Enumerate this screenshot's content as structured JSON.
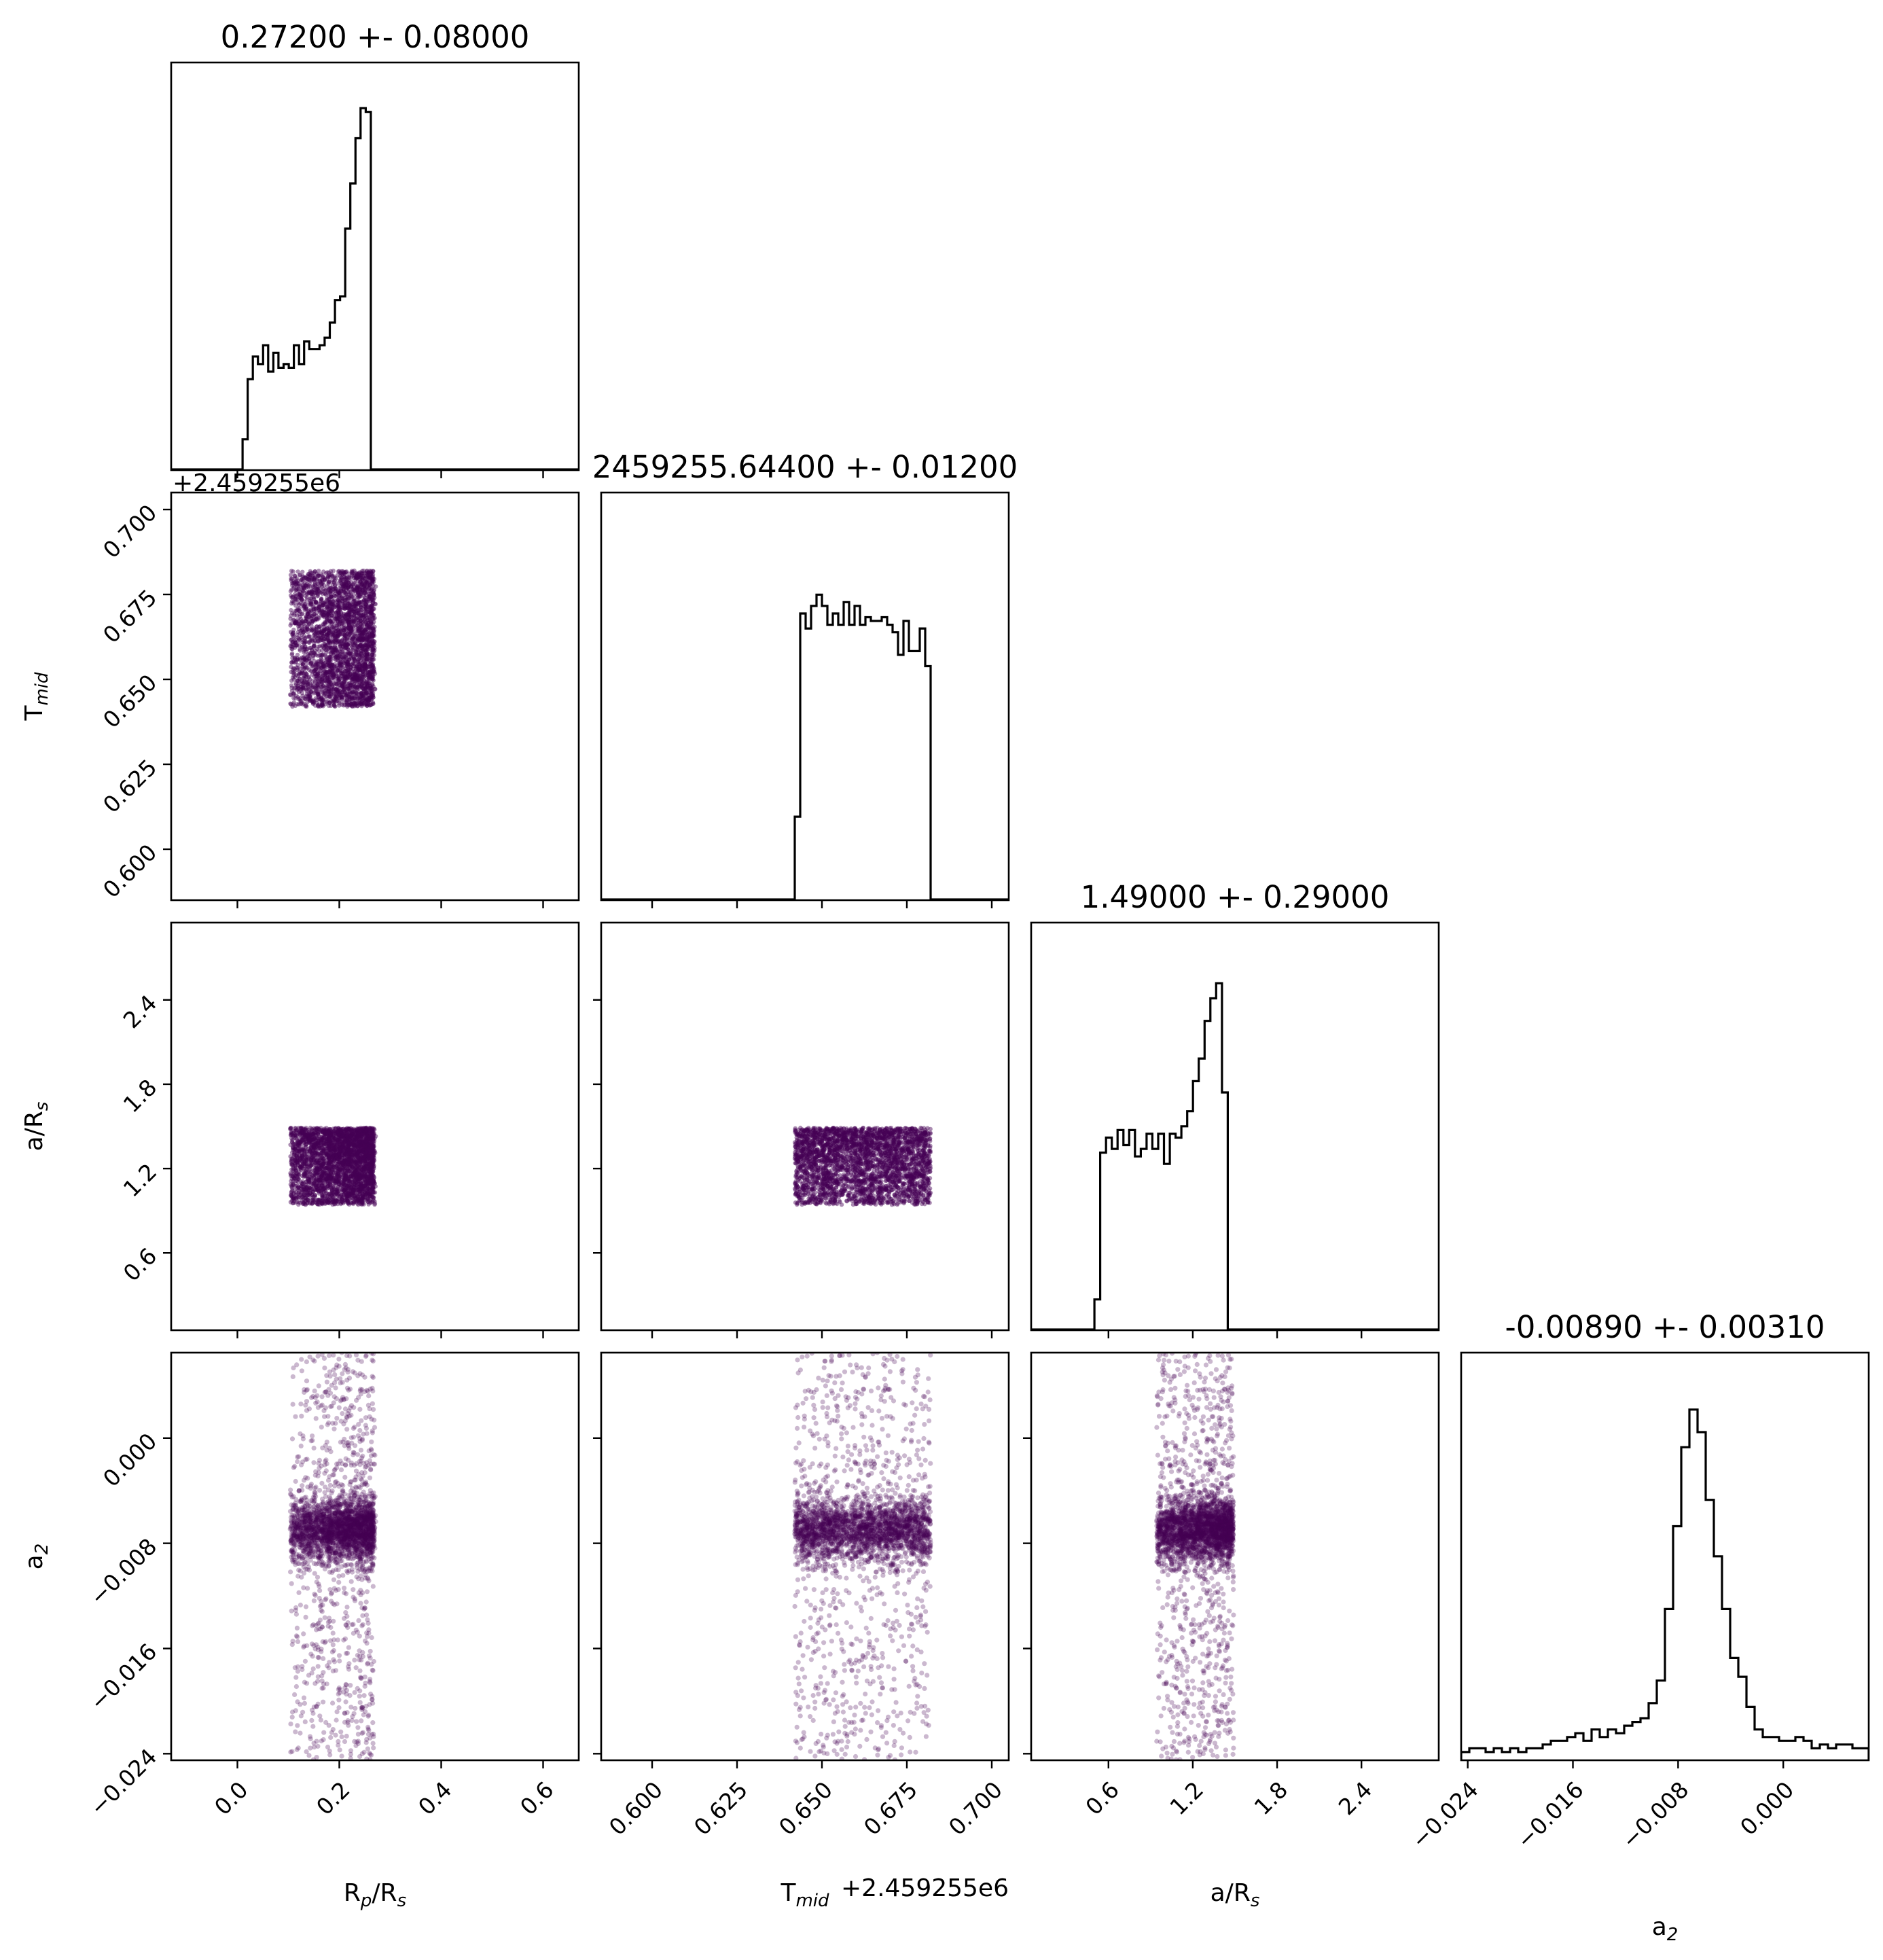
{
  "chart_data": {
    "type": "corner",
    "colors": {
      "scatter": "#440154",
      "hist": "#000000",
      "frame": "#000000"
    },
    "params": [
      {
        "key": "rp",
        "label": "Rp/Rs",
        "label_main": "R",
        "label_sub": "p",
        "label_tail": "/R",
        "label_sub2": "s",
        "range": [
          -0.13,
          0.67
        ],
        "ticks": [
          0.0,
          0.2,
          0.4,
          0.6
        ],
        "tick_labels": [
          "0.0",
          "0.2",
          "0.4",
          "0.6"
        ],
        "title": "0.27200 +- 0.08000",
        "offset": "",
        "sample_range": [
          0.0,
          0.272
        ],
        "hist": [
          0.0,
          0.08,
          0.24,
          0.3,
          0.28,
          0.33,
          0.26,
          0.31,
          0.27,
          0.28,
          0.27,
          0.33,
          0.28,
          0.34,
          0.32,
          0.32,
          0.33,
          0.35,
          0.39,
          0.45,
          0.46,
          0.64,
          0.76,
          0.88,
          0.96,
          0.95,
          0.0
        ]
      },
      {
        "key": "tmid",
        "label": "Tmid",
        "label_main": "T",
        "label_sub": "mid",
        "label_tail": "",
        "label_sub2": "",
        "range": [
          0.585,
          0.705
        ],
        "ticks": [
          0.6,
          0.625,
          0.65,
          0.675,
          0.7
        ],
        "tick_labels": [
          "0.600",
          "0.625",
          "0.650",
          "0.675",
          "0.700"
        ],
        "title": "2459255.64400 +- 0.01200",
        "offset": "+2.459255e6",
        "sample_range": [
          0.642,
          0.682
        ],
        "hist": [
          0.22,
          0.76,
          0.72,
          0.78,
          0.81,
          0.78,
          0.73,
          0.76,
          0.73,
          0.79,
          0.73,
          0.78,
          0.73,
          0.75,
          0.74,
          0.74,
          0.75,
          0.73,
          0.71,
          0.65,
          0.74,
          0.66,
          0.66,
          0.72,
          0.62
        ]
      },
      {
        "key": "ars",
        "label": "a/Rs",
        "label_main": "a/R",
        "label_sub": "s",
        "label_tail": "",
        "label_sub2": "",
        "range": [
          0.05,
          2.95
        ],
        "ticks": [
          0.6,
          1.2,
          1.8,
          2.4
        ],
        "tick_labels": [
          "0.6",
          "1.2",
          "1.8",
          "2.4"
        ],
        "title": "1.49000 +- 0.29000",
        "offset": "",
        "sample_range": [
          0.5,
          1.49
        ],
        "hist": [
          0.08,
          0.47,
          0.51,
          0.48,
          0.53,
          0.49,
          0.53,
          0.46,
          0.48,
          0.52,
          0.48,
          0.52,
          0.44,
          0.52,
          0.51,
          0.54,
          0.58,
          0.66,
          0.72,
          0.82,
          0.88,
          0.92,
          0.63,
          0.0
        ]
      },
      {
        "key": "a2",
        "label": "a2",
        "label_main": "a",
        "label_sub": "2",
        "label_tail": "",
        "label_sub2": "",
        "range": [
          -0.0245,
          0.0065
        ],
        "ticks": [
          -0.024,
          -0.016,
          -0.008,
          0.0
        ],
        "tick_labels": [
          "−0.024",
          "−0.016",
          "−0.008",
          "0.000"
        ],
        "title": "-0.00890 +- 0.00310",
        "offset": "",
        "sample_range": [
          -0.0245,
          0.0065
        ],
        "hist": [
          0.02,
          0.03,
          0.03,
          0.02,
          0.03,
          0.02,
          0.03,
          0.02,
          0.03,
          0.03,
          0.04,
          0.05,
          0.05,
          0.06,
          0.07,
          0.05,
          0.08,
          0.06,
          0.08,
          0.07,
          0.09,
          0.1,
          0.11,
          0.15,
          0.21,
          0.4,
          0.62,
          0.83,
          0.93,
          0.87,
          0.69,
          0.54,
          0.4,
          0.27,
          0.22,
          0.14,
          0.08,
          0.06,
          0.06,
          0.05,
          0.05,
          0.06,
          0.05,
          0.03,
          0.04,
          0.03,
          0.04,
          0.04,
          0.03,
          0.03
        ]
      }
    ],
    "diag_titles": [
      "0.27200 +- 0.08000",
      "2459255.64400 +- 0.01200",
      "1.49000 +- 0.29000",
      "-0.00890 +- 0.00310"
    ],
    "offset_text": "+2.459255e6",
    "a2_core": {
      "mean": -0.0069,
      "sd": 0.0012,
      "tail_frac": 0.28
    },
    "n_samples": 3000
  }
}
